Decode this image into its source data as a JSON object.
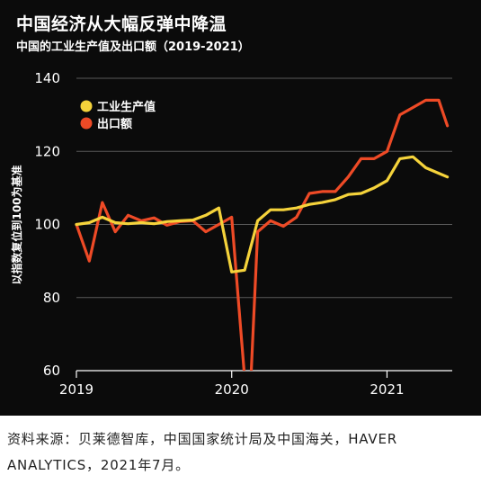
{
  "title": "中国经济从大幅反弹中降温",
  "subtitle": "中国的工业生产值及出口额（2019-2021）",
  "source": "资料来源：贝莱德智库，中国国家统计局及中国海关，HAVER ANALYTICS，2021年7月。",
  "colors": {
    "background": "#0b0b0b",
    "industrial": "#f5d33b",
    "exports": "#ee4a26",
    "grid": "#5a5a5a",
    "text": "#ffffff"
  },
  "chart_data": {
    "type": "line",
    "title": "中国经济从大幅反弹中降温",
    "subtitle": "中国的工业生产值及出口额（2019-2021）",
    "xlabel": "",
    "ylabel": "以指数复位到100为基准",
    "ylim": [
      60,
      140
    ],
    "yticks": [
      60,
      80,
      100,
      120,
      140
    ],
    "xlim": [
      2019.0,
      2021.42
    ],
    "xticks": [
      2019,
      2020,
      2021
    ],
    "xtick_labels": [
      "2019",
      "2020",
      "2021"
    ],
    "grid": "horizontal",
    "legend_position": "top-left",
    "series": [
      {
        "name": "工业生产值",
        "color": "#f5d33b",
        "x": [
          2019.0,
          2019.083,
          2019.167,
          2019.25,
          2019.333,
          2019.417,
          2019.5,
          2019.583,
          2019.667,
          2019.75,
          2019.833,
          2019.917,
          2020.0,
          2020.083,
          2020.167,
          2020.25,
          2020.333,
          2020.417,
          2020.5,
          2020.583,
          2020.667,
          2020.75,
          2020.833,
          2020.917,
          2021.0,
          2021.083,
          2021.167,
          2021.25,
          2021.333,
          2021.389
        ],
        "values": [
          100,
          100.5,
          102,
          100.5,
          100.2,
          100.5,
          100.2,
          100.8,
          101,
          101.2,
          102.5,
          104.5,
          87,
          87.5,
          101,
          104,
          104,
          104.5,
          105.5,
          106,
          106.8,
          108.2,
          108.5,
          110,
          112,
          118,
          118.5,
          115.5,
          114,
          113
        ]
      },
      {
        "name": "出口额",
        "color": "#ee4a26",
        "x": [
          2019.0,
          2019.083,
          2019.167,
          2019.25,
          2019.333,
          2019.417,
          2019.5,
          2019.583,
          2019.667,
          2019.75,
          2019.833,
          2019.917,
          2020.0,
          2020.083,
          2020.125,
          2020.167,
          2020.25,
          2020.333,
          2020.417,
          2020.5,
          2020.583,
          2020.667,
          2020.75,
          2020.833,
          2020.917,
          2021.0,
          2021.083,
          2021.167,
          2021.25,
          2021.333,
          2021.389
        ],
        "values": [
          100,
          90,
          106,
          98,
          102.5,
          101,
          101.8,
          99.8,
          100.8,
          101,
          98,
          100,
          102,
          58,
          59,
          98,
          101,
          99.5,
          102,
          108.5,
          109,
          109,
          113,
          118,
          118,
          120,
          130,
          132,
          134,
          134,
          127
        ]
      }
    ]
  }
}
